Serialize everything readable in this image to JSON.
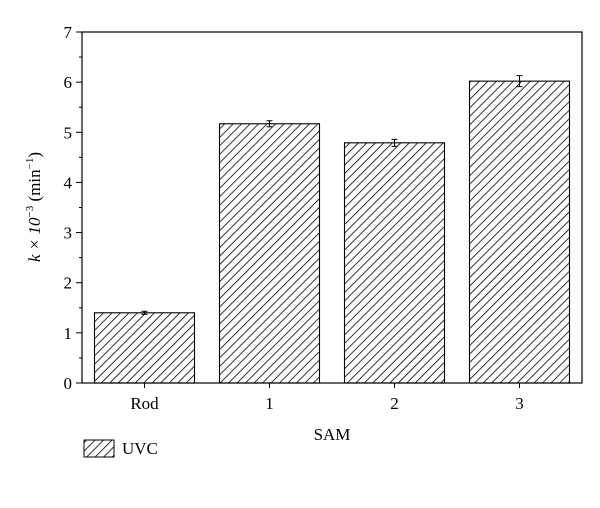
{
  "chart_data": {
    "type": "bar",
    "categories": [
      "Rod",
      "1",
      "2",
      "3"
    ],
    "series": [
      {
        "name": "UVC",
        "values": [
          1.4,
          5.17,
          4.79,
          6.02
        ],
        "errors": [
          0.03,
          0.06,
          0.07,
          0.11
        ]
      }
    ],
    "xlabel": "SAM",
    "ylabel": {
      "prefix": "k × 10",
      "exp": "−3",
      "unit": " (min",
      "unit_exp": "−1",
      "close": ")"
    },
    "ylim": [
      0,
      7
    ],
    "yticks": [
      0,
      1,
      2,
      3,
      4,
      5,
      6,
      7
    ],
    "grid": false,
    "bar_fill": "diagonal-hatch",
    "legend_position": "bottom-left"
  }
}
